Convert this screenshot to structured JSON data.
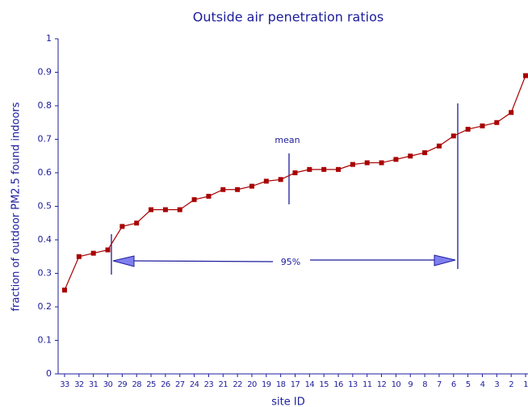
{
  "chart_data": {
    "type": "line",
    "title": "Outside air penetration ratios",
    "x_label": "site ID",
    "y_label": "fraction of outdoor PM2.5 found indoors",
    "categories": [
      "33",
      "32",
      "31",
      "30",
      "29",
      "28",
      "25",
      "26",
      "27",
      "24",
      "23",
      "21",
      "22",
      "20",
      "19",
      "18",
      "17",
      "14",
      "15",
      "16",
      "13",
      "11",
      "12",
      "10",
      "9",
      "8",
      "7",
      "6",
      "5",
      "4",
      "3",
      "2",
      "1"
    ],
    "series": [
      {
        "name": "penetration ratio",
        "color": "#a80000",
        "values": [
          0.25,
          0.35,
          0.36,
          0.37,
          0.44,
          0.45,
          0.49,
          0.49,
          0.49,
          0.52,
          0.53,
          0.55,
          0.55,
          0.56,
          0.575,
          0.58,
          0.6,
          0.61,
          0.61,
          0.61,
          0.625,
          0.63,
          0.63,
          0.64,
          0.65,
          0.66,
          0.68,
          0.71,
          0.73,
          0.74,
          0.75,
          0.78,
          0.89
        ]
      }
    ],
    "ylim": [
      0,
      1
    ],
    "yticks": [
      0,
      0.1,
      0.2,
      0.3,
      0.4,
      0.5,
      0.6,
      0.7,
      0.8,
      0.9,
      1
    ],
    "annotations": {
      "mean": "mean",
      "interval": "95%"
    }
  }
}
